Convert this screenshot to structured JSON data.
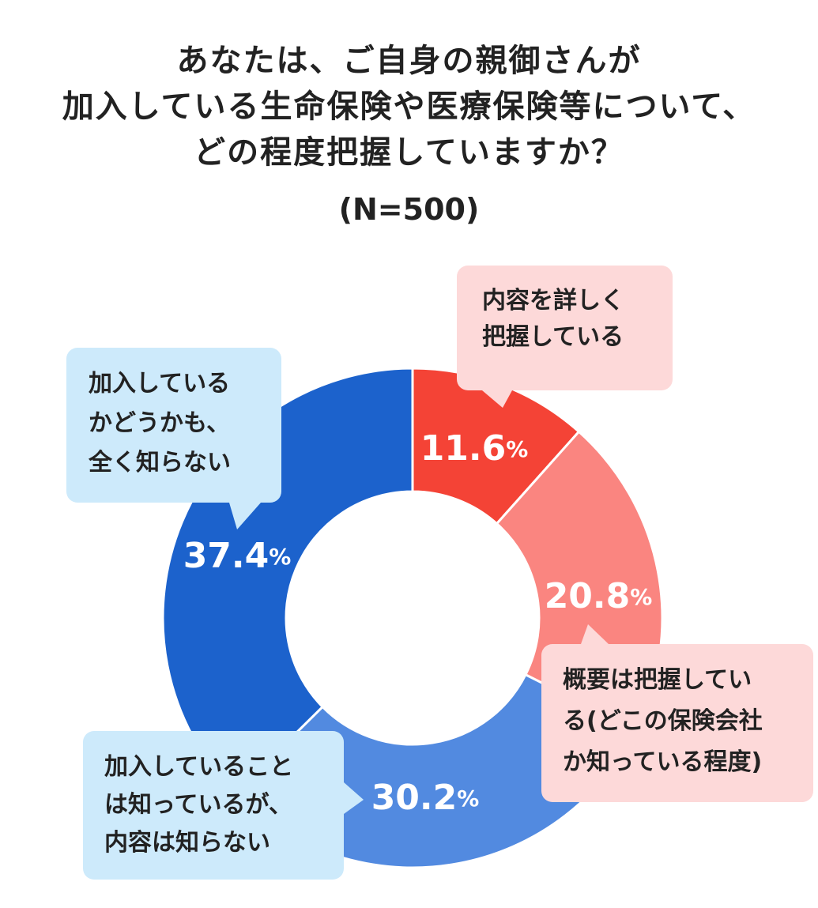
{
  "title_lines": [
    "あなたは、ご自身の親御さんが",
    "加入している生命保険や医療保険等について、",
    "どの程度把握していますか？"
  ],
  "sample_note": "(N=500)",
  "chart_data": {
    "type": "pie",
    "style": "donut",
    "unit": "%",
    "slices": [
      {
        "label": "内容を詳しく把握している",
        "label_lines": [
          "内容を詳しく",
          "把握している"
        ],
        "value": 11.6,
        "display_value": "11.6",
        "color": "#f44336",
        "callout_bg": "#fdd9d9"
      },
      {
        "label": "概要は把握している(どこの保険会社か知っている程度)",
        "label_lines": [
          "概要は把握してい",
          "る(どこの保険会社",
          "か知っている程度)"
        ],
        "value": 20.8,
        "display_value": "20.8",
        "color": "#fa8580",
        "callout_bg": "#fdd9d9"
      },
      {
        "label": "加入していることは知っているが、内容は知らない",
        "label_lines": [
          "加入していること",
          "は知っているが、",
          "内容は知らない"
        ],
        "value": 30.2,
        "display_value": "30.2",
        "color": "#528ae0",
        "callout_bg": "#cdeafb"
      },
      {
        "label": "加入しているかどうかも、全く知らない",
        "label_lines": [
          "加入している",
          "かどうかも、",
          "全く知らない"
        ],
        "value": 37.4,
        "display_value": "37.4",
        "color": "#1c62cc",
        "callout_bg": "#cdeafb"
      }
    ]
  }
}
